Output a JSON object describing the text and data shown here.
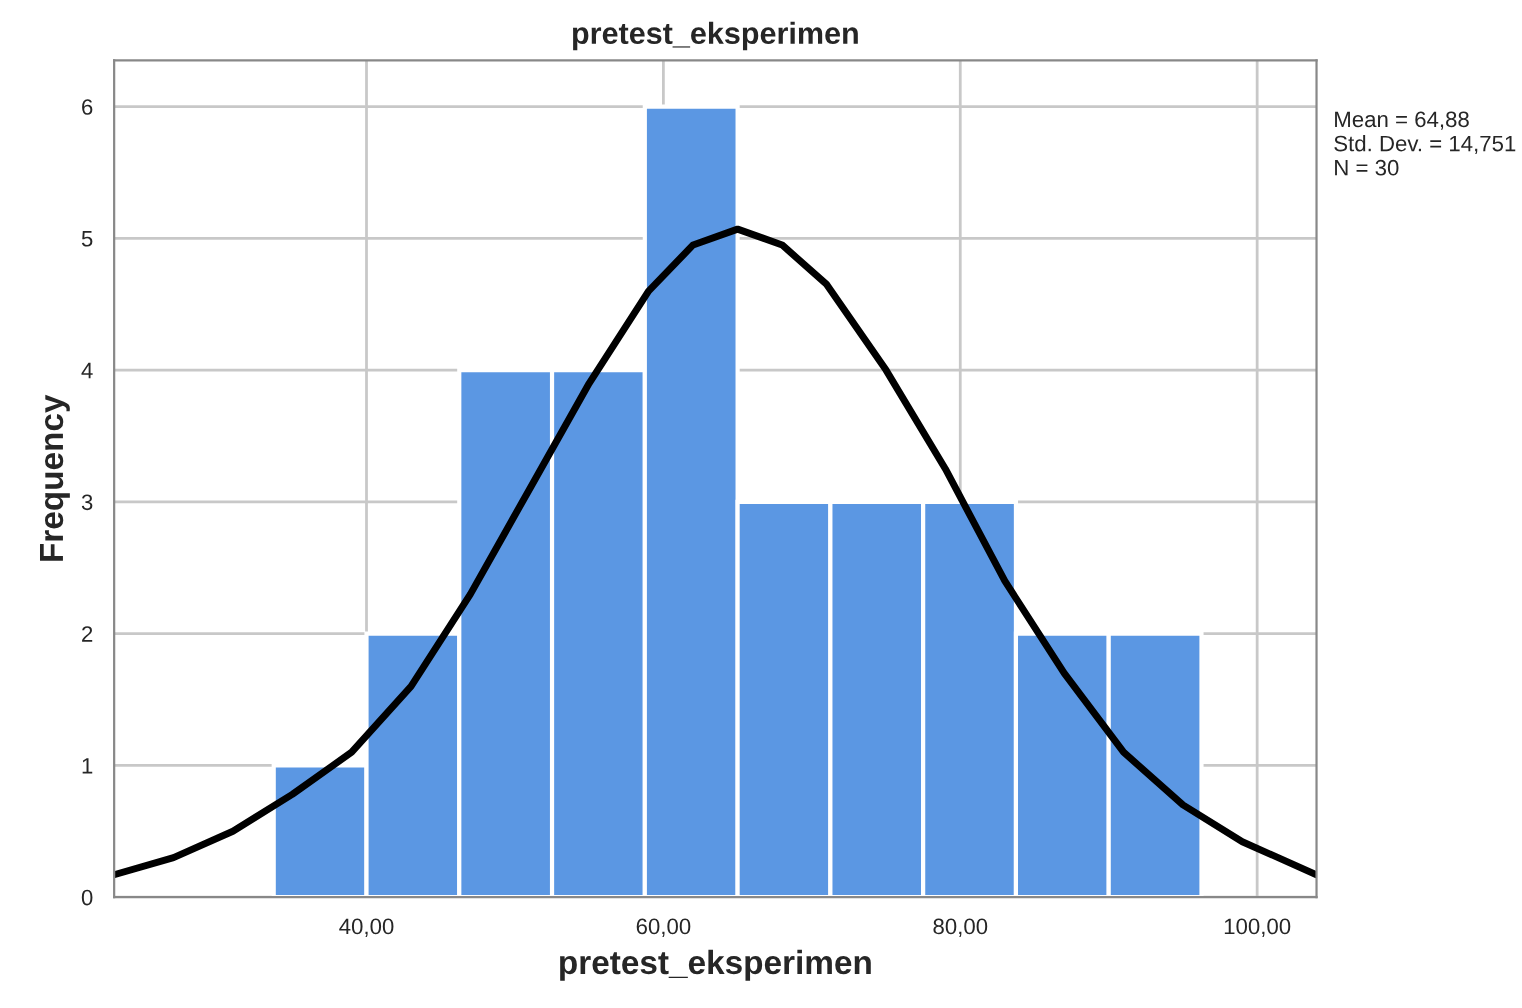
{
  "chart_data": {
    "type": "histogram",
    "title": "pretest_eksperimen",
    "xlabel": "pretest_eksperimen",
    "ylabel": "Frequency",
    "bins": [
      33.75,
      40,
      46.25,
      52.5,
      58.75,
      65,
      71.25,
      77.5,
      83.75,
      90,
      96.25
    ],
    "values": [
      1,
      2,
      4,
      4,
      6,
      3,
      3,
      3,
      2,
      2
    ],
    "color": "#5b97e3",
    "series": [
      {
        "type": "line",
        "color": "#000000",
        "x": [
          23,
          27,
          31,
          35,
          39,
          43,
          47,
          51,
          55,
          59,
          62,
          65,
          68,
          71,
          75,
          79,
          83,
          87,
          91,
          95,
          99,
          104
        ],
        "values": [
          0.17,
          0.3,
          0.5,
          0.78,
          1.1,
          1.6,
          2.3,
          3.1,
          3.9,
          4.6,
          4.95,
          5.07,
          4.95,
          4.65,
          4.0,
          3.25,
          2.4,
          1.7,
          1.1,
          0.7,
          0.42,
          0.17
        ]
      }
    ],
    "xlim": [
      23,
      104
    ],
    "ylim": [
      0,
      6.35
    ],
    "xticks": [
      {
        "value": 40,
        "label": "40,00"
      },
      {
        "value": 60,
        "label": "60,00"
      },
      {
        "value": 80,
        "label": "80,00"
      },
      {
        "value": 100,
        "label": "100,00"
      }
    ],
    "yticks": [
      0,
      1,
      2,
      3,
      4,
      5,
      6
    ],
    "grid": true,
    "annotations": [
      "Mean = 64,88",
      "Std. Dev. = 14,751",
      "N = 30"
    ]
  }
}
